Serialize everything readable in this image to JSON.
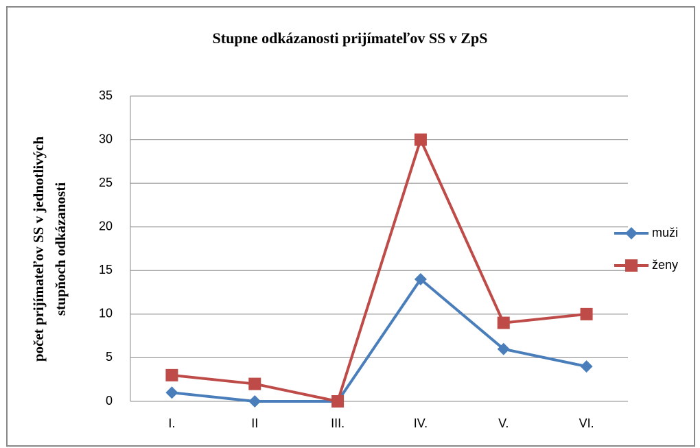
{
  "chart_data": {
    "type": "line",
    "title": "Stupne odkázanosti prijímateľov SS v ZpS",
    "y_label": [
      "počet prijímateľov SS v jednotlivých",
      "stupňoch odkázanosti"
    ],
    "categories": [
      "I.",
      "II",
      "III.",
      "IV.",
      "V.",
      "VI."
    ],
    "series": [
      {
        "name": "muži",
        "color": "#4a7ebb",
        "marker": "diamond",
        "values": [
          1,
          0,
          0,
          14,
          6,
          4
        ]
      },
      {
        "name": "ženy",
        "color": "#be4b48",
        "marker": "square",
        "values": [
          3,
          2,
          0,
          30,
          9,
          10
        ]
      }
    ],
    "ylim": [
      0,
      35
    ],
    "yticks": [
      0,
      5,
      10,
      15,
      20,
      25,
      30,
      35
    ],
    "grid": true,
    "legend": "right"
  }
}
